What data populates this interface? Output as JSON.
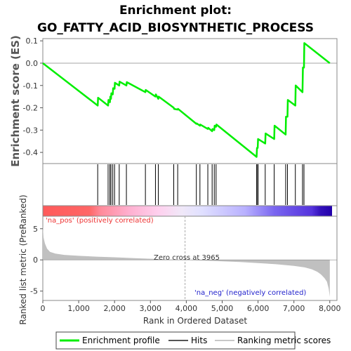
{
  "title_line1": "Enrichment plot:",
  "title_line2": "GO_FATTY_ACID_BIOSYNTHETIC_PROCESS",
  "colors": {
    "es_line": "#00ee00",
    "hits": "#000000",
    "metric_fill": "#c0c0c0",
    "pos_label": "#ee3333",
    "neg_label": "#2222cc",
    "heat_red": "#ff5a5a",
    "heat_blue": "#5533dd"
  },
  "chart_data": [
    {
      "type": "line",
      "name": "enrichment_plot",
      "ylabel": "Enrichment score (ES)",
      "ylim": [
        -0.45,
        0.11
      ],
      "yticks": [
        "0.1",
        "0.0",
        "-0.1",
        "-0.2",
        "-0.3",
        "-0.4"
      ],
      "ytick_values": [
        0.1,
        0.0,
        -0.1,
        -0.2,
        -0.3,
        -0.4
      ],
      "xlim": [
        0,
        8200
      ],
      "grid": false,
      "x": [
        0,
        1530,
        1540,
        1820,
        1830,
        1870,
        1880,
        1900,
        1910,
        1950,
        1960,
        2000,
        2010,
        2130,
        2140,
        2330,
        2340,
        2860,
        2870,
        3140,
        3150,
        3220,
        3230,
        3650,
        3660,
        3760,
        3770,
        4280,
        4290,
        4380,
        4390,
        4600,
        4610,
        4720,
        4730,
        4780,
        4790,
        4830,
        4840,
        5960,
        5970,
        5990,
        6000,
        6200,
        6210,
        6450,
        6460,
        6770,
        6780,
        6820,
        6830,
        7040,
        7050,
        7240,
        7250,
        7280,
        7290,
        8000
      ],
      "y": [
        0.0,
        -0.19,
        -0.155,
        -0.19,
        -0.165,
        -0.175,
        -0.15,
        -0.16,
        -0.135,
        -0.14,
        -0.112,
        -0.115,
        -0.088,
        -0.1,
        -0.083,
        -0.1,
        -0.085,
        -0.13,
        -0.12,
        -0.15,
        -0.14,
        -0.16,
        -0.15,
        -0.2,
        -0.205,
        -0.208,
        -0.205,
        -0.272,
        -0.27,
        -0.28,
        -0.275,
        -0.295,
        -0.29,
        -0.305,
        -0.295,
        -0.3,
        -0.28,
        -0.285,
        -0.275,
        -0.42,
        -0.38,
        -0.38,
        -0.34,
        -0.36,
        -0.315,
        -0.34,
        -0.28,
        -0.32,
        -0.24,
        -0.24,
        -0.165,
        -0.19,
        -0.1,
        -0.13,
        -0.02,
        -0.02,
        0.09,
        0.0
      ],
      "hits": [
        1530,
        1820,
        1870,
        1900,
        1950,
        2000,
        2130,
        2330,
        2860,
        3140,
        3220,
        3650,
        3760,
        4280,
        4380,
        4600,
        4720,
        4780,
        4830,
        5960,
        5990,
        6000,
        6200,
        6450,
        6770,
        6820,
        7040,
        7240,
        7280
      ]
    },
    {
      "type": "area",
      "name": "ranked_list_metric",
      "xlabel": "Rank in Ordered Dataset",
      "ylabel": "Ranked list metric (PreRanked)",
      "xlim": [
        0,
        8200
      ],
      "ylim": [
        -6.5,
        7
      ],
      "xticks": [
        "0",
        "1,000",
        "2,000",
        "3,000",
        "4,000",
        "5,000",
        "6,000",
        "7,000",
        "8,000"
      ],
      "xtick_values": [
        0,
        1000,
        2000,
        3000,
        4000,
        5000,
        6000,
        7000,
        8000
      ],
      "yticks": [
        "5",
        "0",
        "-5"
      ],
      "ytick_values": [
        5,
        0,
        -5
      ],
      "x": [
        0,
        20,
        60,
        120,
        200,
        350,
        600,
        1000,
        1500,
        2000,
        2500,
        3000,
        3500,
        3965,
        4500,
        5000,
        5500,
        6000,
        6500,
        7000,
        7300,
        7500,
        7650,
        7750,
        7850,
        7920,
        7970,
        8000
      ],
      "values": [
        5.4,
        3.6,
        2.6,
        1.8,
        1.3,
        1.0,
        0.8,
        0.65,
        0.52,
        0.42,
        0.3,
        0.18,
        0.08,
        0.0,
        -0.12,
        -0.22,
        -0.35,
        -0.5,
        -0.7,
        -0.95,
        -1.2,
        -1.5,
        -1.9,
        -2.3,
        -2.9,
        -3.5,
        -4.6,
        -5.9
      ],
      "zero_cross_label": "Zero cross at 3965",
      "zero_cross": 3965,
      "pos_label": "'na_pos' (positively correlated)",
      "neg_label": "'na_neg' (negatively correlated)"
    }
  ],
  "legend": {
    "items": [
      "Enrichment profile",
      "Hits",
      "Ranking metric scores"
    ]
  }
}
